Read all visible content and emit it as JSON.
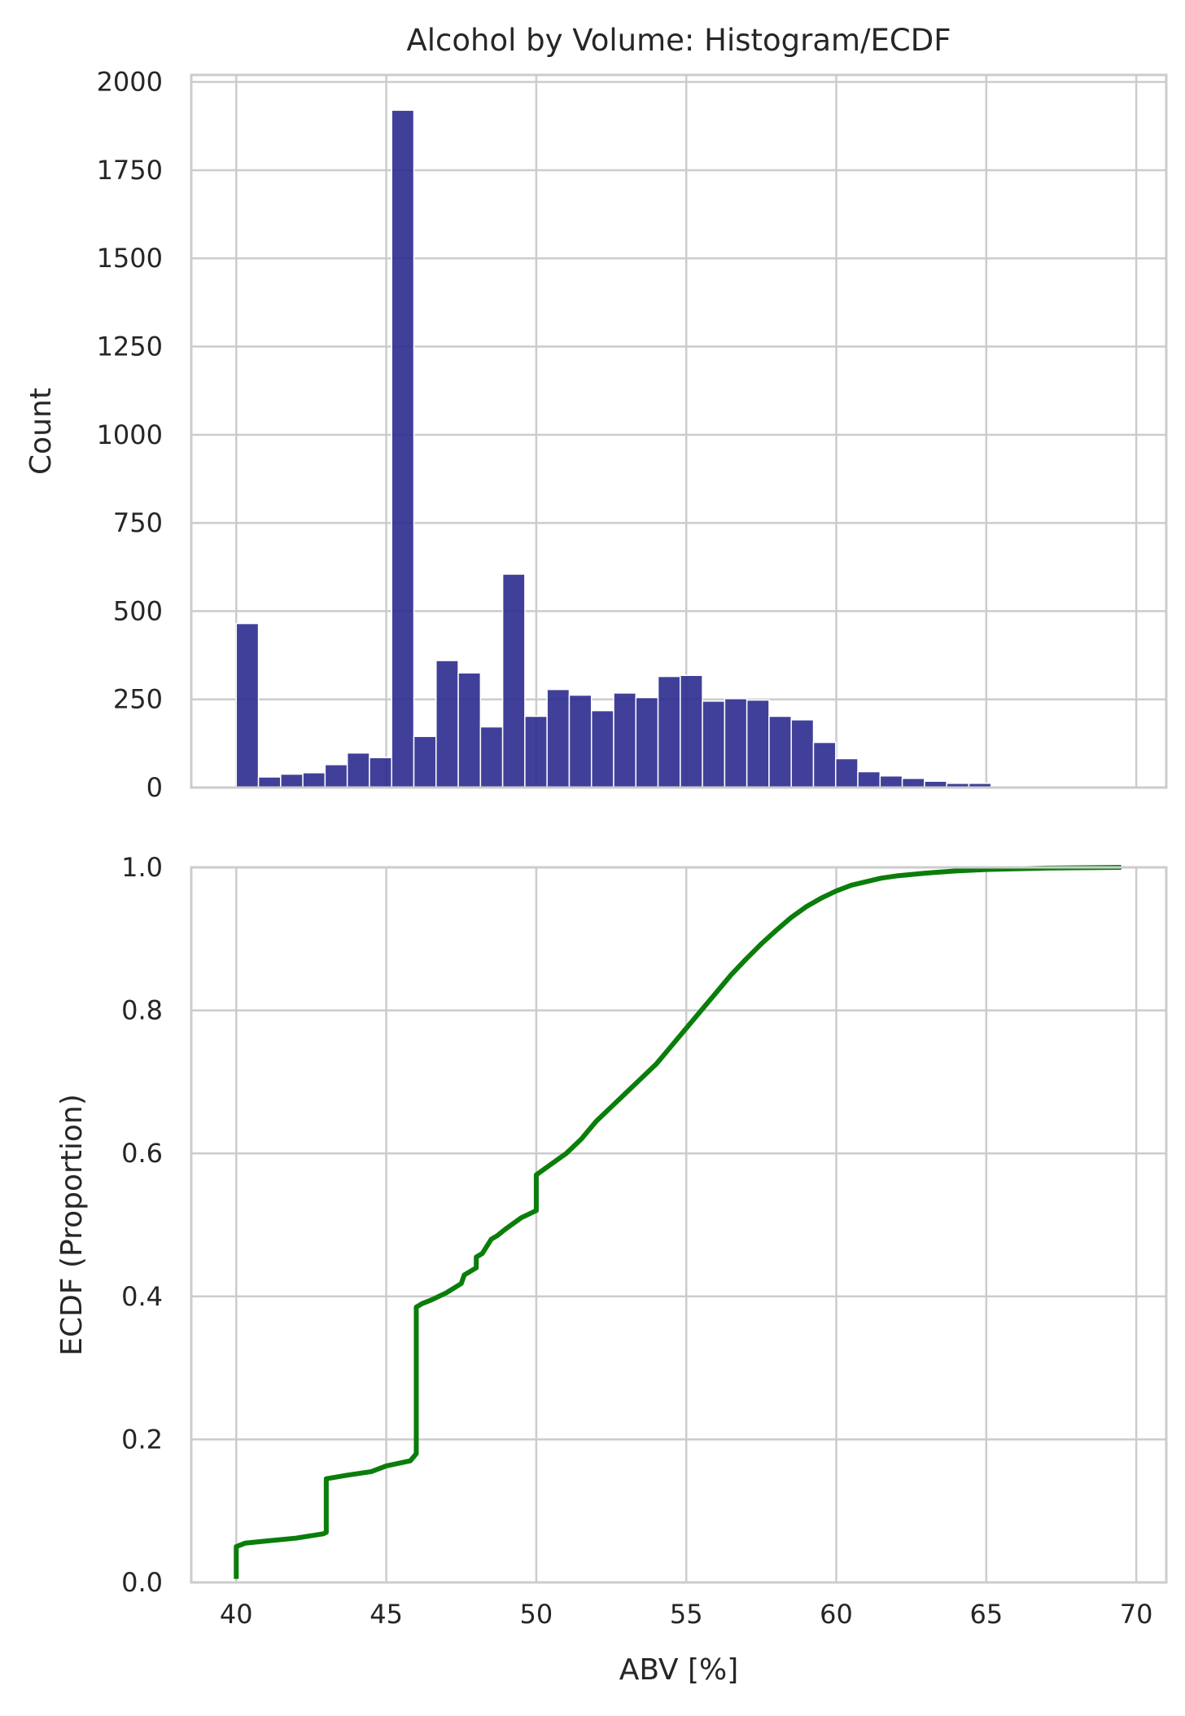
{
  "figure": {
    "title": "Alcohol by Volume: Histogram/ECDF"
  },
  "colors": {
    "bar_fill": "#2b2b8f",
    "bar_edge": "#ffffff",
    "ecdf_line": "#0a7d0a",
    "grid": "#cccccc",
    "spine": "#cccccc",
    "background": "#ffffff"
  },
  "chart_data": [
    {
      "type": "bar",
      "title": "Alcohol by Volume: Histogram/ECDF",
      "xlabel": "",
      "ylabel": "Count",
      "xlim": [
        38.5,
        71.0
      ],
      "ylim": [
        0,
        2020
      ],
      "xticks": [
        40,
        45,
        50,
        55,
        60,
        65,
        70
      ],
      "xtick_labels_shown": false,
      "yticks": [
        0,
        250,
        500,
        750,
        1000,
        1250,
        1500,
        1750,
        2000
      ],
      "ytick_labels": [
        "0",
        "250",
        "500",
        "750",
        "1000",
        "1250",
        "1500",
        "1750",
        "2000"
      ],
      "grid": true,
      "bin_start": 40.0,
      "bin_width": 0.74,
      "values": [
        465,
        30,
        38,
        42,
        65,
        98,
        85,
        1920,
        145,
        360,
        325,
        172,
        605,
        202,
        278,
        262,
        218,
        268,
        255,
        315,
        318,
        245,
        252,
        248,
        202,
        192,
        128,
        82,
        45,
        33,
        26,
        18,
        12,
        12,
        4,
        3,
        2,
        1,
        1,
        1
      ]
    },
    {
      "type": "line",
      "xlabel": "ABV [%]",
      "ylabel": "ECDF (Proportion)",
      "xlim": [
        38.5,
        71.0
      ],
      "ylim": [
        0.0,
        1.0
      ],
      "xticks": [
        40,
        45,
        50,
        55,
        60,
        65,
        70
      ],
      "xtick_labels": [
        "40",
        "45",
        "50",
        "55",
        "60",
        "65",
        "70"
      ],
      "yticks": [
        0.0,
        0.2,
        0.4,
        0.6,
        0.8,
        1.0
      ],
      "ytick_labels": [
        "0.0",
        "0.2",
        "0.4",
        "0.6",
        "0.8",
        "1.0"
      ],
      "grid": true,
      "x": [
        40,
        40,
        40.3,
        41,
        42,
        42.9,
        43,
        43,
        43.7,
        44.5,
        45,
        45.8,
        46,
        46,
        46,
        46.2,
        46.5,
        47,
        47.5,
        47.6,
        48,
        48,
        48.2,
        48.5,
        48.7,
        49,
        49.5,
        50,
        50,
        50.5,
        51,
        51.5,
        51.7,
        52,
        52.5,
        53,
        53.5,
        54,
        54.5,
        55,
        55.5,
        56,
        56.5,
        57,
        57.5,
        58,
        58.5,
        59,
        59.5,
        60,
        60.5,
        61,
        61.5,
        62,
        63,
        64,
        65,
        66,
        67,
        68,
        69.5
      ],
      "y": [
        0.005,
        0.05,
        0.055,
        0.058,
        0.062,
        0.068,
        0.07,
        0.145,
        0.15,
        0.155,
        0.163,
        0.17,
        0.18,
        0.38,
        0.385,
        0.39,
        0.395,
        0.405,
        0.418,
        0.43,
        0.44,
        0.455,
        0.46,
        0.48,
        0.485,
        0.495,
        0.51,
        0.52,
        0.57,
        0.585,
        0.6,
        0.62,
        0.63,
        0.645,
        0.665,
        0.685,
        0.705,
        0.725,
        0.75,
        0.775,
        0.8,
        0.825,
        0.85,
        0.872,
        0.893,
        0.912,
        0.93,
        0.945,
        0.957,
        0.967,
        0.975,
        0.98,
        0.985,
        0.988,
        0.992,
        0.995,
        0.997,
        0.998,
        0.999,
        0.9995,
        1.0
      ]
    }
  ]
}
